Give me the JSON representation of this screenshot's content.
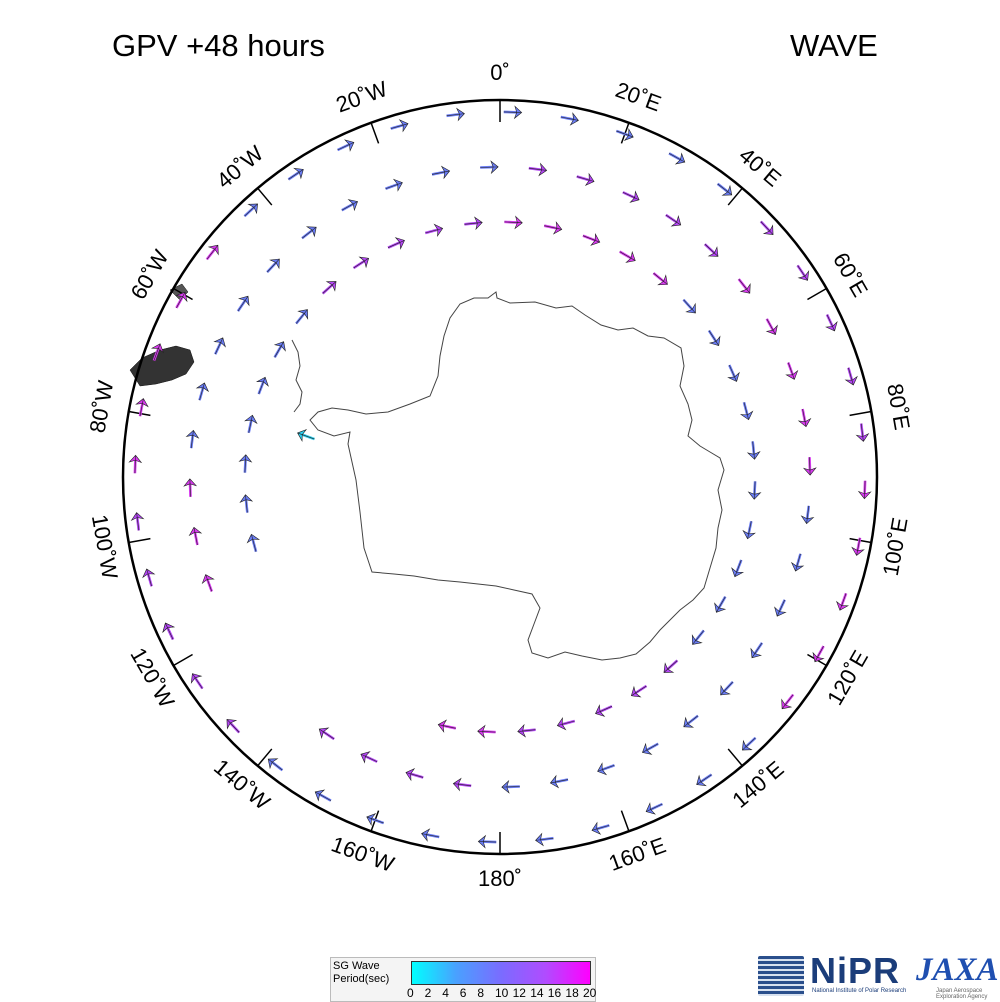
{
  "header": {
    "title_left": "GPV +48 hours",
    "title_right": "WAVE"
  },
  "map": {
    "projection": "south-polar-stereographic",
    "center": "South Pole",
    "longitude_labels": [
      {
        "lon": 0,
        "text": "0˚"
      },
      {
        "lon": 20,
        "text": "20˚E"
      },
      {
        "lon": 40,
        "text": "40˚E"
      },
      {
        "lon": 60,
        "text": "60˚E"
      },
      {
        "lon": 80,
        "text": "80˚E"
      },
      {
        "lon": 100,
        "text": "100˚E"
      },
      {
        "lon": 120,
        "text": "120˚E"
      },
      {
        "lon": 140,
        "text": "140˚E"
      },
      {
        "lon": 160,
        "text": "160˚E"
      },
      {
        "lon": 180,
        "text": "180˚"
      },
      {
        "lon": -160,
        "text": "160˚W"
      },
      {
        "lon": -140,
        "text": "140˚W"
      },
      {
        "lon": -120,
        "text": "120˚W"
      },
      {
        "lon": -100,
        "text": "100˚W"
      },
      {
        "lon": -80,
        "text": "80˚W"
      },
      {
        "lon": -60,
        "text": "60˚W"
      },
      {
        "lon": -40,
        "text": "40˚W"
      },
      {
        "lon": -20,
        "text": "20˚W"
      }
    ],
    "arrow_colors": {
      "short_period": "#2ed0f0",
      "mid_period": "#6a7cf4",
      "long_period": "#b445f5",
      "longest_period": "#d83af0"
    }
  },
  "legend": {
    "title_line1": "SG Wave",
    "title_line2": "Period(sec)",
    "ticks": [
      "0",
      "2",
      "4",
      "6",
      "8",
      "10",
      "12",
      "14",
      "16",
      "18",
      "20"
    ],
    "color_min": "#00ffff",
    "color_max": "#ff00ff"
  },
  "logos": {
    "nipr_name": "NiPR",
    "nipr_sub": "National Institute of Polar Research",
    "jaxa_name": "JAXA",
    "jaxa_sub": "Japan Aerospace Exploration Agency"
  }
}
